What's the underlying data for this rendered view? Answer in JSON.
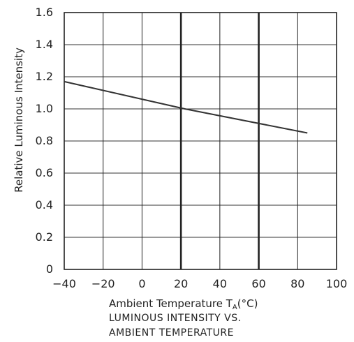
{
  "chart_data": {
    "type": "line",
    "title": "",
    "ylabel": "Relative Luminous Intensity",
    "xlabel_main": "Ambient Temperature T",
    "xlabel_sub": "A",
    "xlabel_unit": "(°C)",
    "caption": [
      "LUMINOUS INTENSITY VS.",
      "AMBIENT TEMPERATURE"
    ],
    "xlim": [
      -40,
      100
    ],
    "ylim": [
      0,
      1.6
    ],
    "x_ticks": [
      -40,
      -20,
      0,
      20,
      40,
      60,
      80,
      100
    ],
    "x_tick_labels": [
      "−40",
      "−20",
      "0",
      "20",
      "40",
      "60",
      "80",
      "100"
    ],
    "y_ticks": [
      0,
      0.2,
      0.4,
      0.6,
      0.8,
      1.0,
      1.2,
      1.4,
      1.6
    ],
    "y_tick_labels": [
      "0",
      "0.2",
      "0.4",
      "0.6",
      "0.8",
      "1.0",
      "1.2",
      "1.4",
      "1.6"
    ],
    "v_grid": [
      -20,
      0,
      20,
      40,
      60,
      80
    ],
    "v_grid_bold": [
      20,
      60
    ],
    "grid": true,
    "series": [
      {
        "x": [
          -40,
          22,
          85
        ],
        "y": [
          1.17,
          1.0,
          0.85
        ]
      }
    ]
  }
}
